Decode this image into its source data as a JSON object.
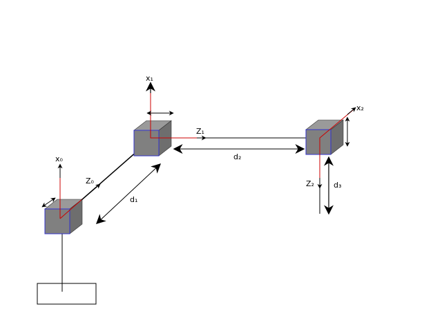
{
  "labels": {
    "x0": "x₀",
    "z0": "Z₀",
    "x1": "x₁",
    "z1": "Z₁",
    "x2": "x₂",
    "z2": "Z₂",
    "d1": "d₁",
    "d2": "d₂",
    "d3": "d₃"
  },
  "colors": {
    "axis_z_red": "#cc0000",
    "cube_front": "#808080",
    "cube_top": "#9a9a9a",
    "cube_side": "#6e6e6e",
    "cube_edge_blue": "#3333cc",
    "line_black": "#000000"
  }
}
